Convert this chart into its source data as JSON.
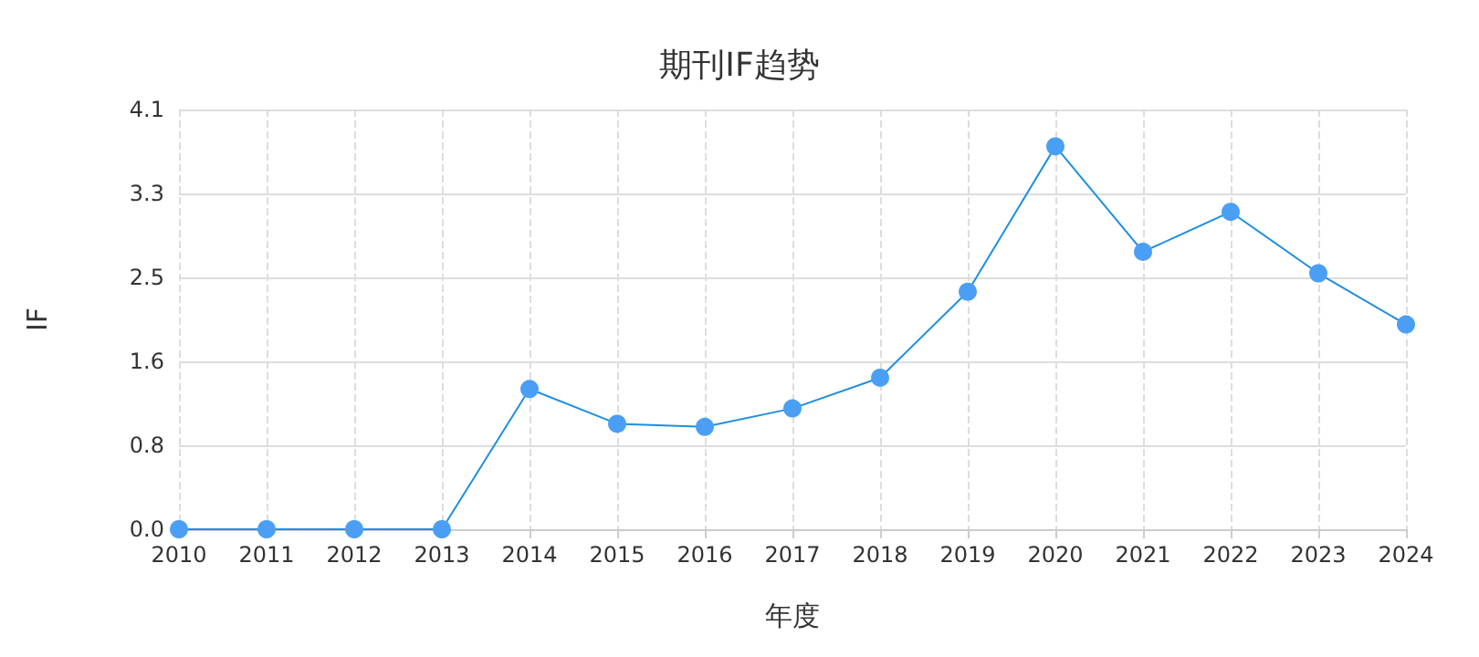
{
  "chart_data": {
    "type": "line",
    "title": "期刊IF趋势",
    "xlabel": "年度",
    "ylabel": "IF",
    "categories": [
      "2010",
      "2011",
      "2012",
      "2013",
      "2014",
      "2015",
      "2016",
      "2017",
      "2018",
      "2019",
      "2020",
      "2021",
      "2022",
      "2023",
      "2024"
    ],
    "series": [
      {
        "color": "#4a9ff5",
        "values": [
          0,
          0,
          0,
          0,
          1.37,
          1.03,
          1.0,
          1.18,
          1.48,
          2.32,
          3.74,
          2.71,
          3.1,
          2.5,
          2.0
        ]
      }
    ],
    "ylim": [
      0,
      4.1
    ],
    "yticks": [
      {
        "value": 0,
        "label": "0.0"
      },
      {
        "value": 0.82,
        "label": "0.8"
      },
      {
        "value": 1.64,
        "label": "1.6"
      },
      {
        "value": 2.46,
        "label": "2.5"
      },
      {
        "value": 3.28,
        "label": "3.3"
      },
      {
        "value": 4.1,
        "label": "4.1"
      }
    ],
    "grid": true,
    "marker": "circle",
    "line_style": "solid"
  }
}
